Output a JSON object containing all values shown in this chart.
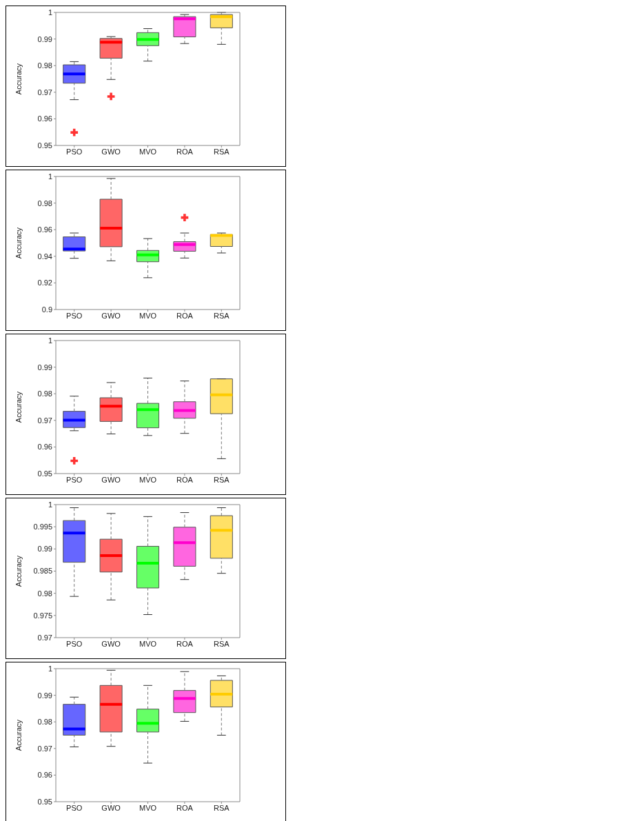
{
  "chart_data": [
    {
      "type": "box",
      "ylabel": "Accuracy",
      "categories": [
        "PSO",
        "GWO",
        "MVO",
        "ROA",
        "RSA"
      ],
      "colors": [
        "#0000ff",
        "#ff0000",
        "#00ff00",
        "#ff00cc",
        "#ffcc00"
      ],
      "ylim": [
        0.95,
        1
      ],
      "yticks": [
        0.95,
        0.96,
        0.97,
        0.98,
        0.99,
        1
      ],
      "boxes": [
        {
          "low": 0.9672,
          "q1": 0.9734,
          "median": 0.9769,
          "q3": 0.9803,
          "high": 0.9815,
          "outliers": [
            0.9549
          ]
        },
        {
          "low": 0.9748,
          "q1": 0.9828,
          "median": 0.9888,
          "q3": 0.9902,
          "high": 0.9909,
          "outliers": [
            0.9684
          ]
        },
        {
          "low": 0.9817,
          "q1": 0.9875,
          "median": 0.9898,
          "q3": 0.9924,
          "high": 0.9939
        },
        {
          "low": 0.9883,
          "q1": 0.9908,
          "median": 0.9976,
          "q3": 0.9984,
          "high": 0.9992
        },
        {
          "low": 0.988,
          "q1": 0.9942,
          "median": 0.9984,
          "q3": 0.9992,
          "high": 1
        }
      ]
    },
    {
      "type": "box",
      "ylabel": "Accuracy",
      "categories": [
        "PSO",
        "GWO",
        "MVO",
        "ROA",
        "RSA"
      ],
      "colors": [
        "#0000ff",
        "#ff0000",
        "#00ff00",
        "#ff00cc",
        "#ffcc00"
      ],
      "ylim": [
        0.9,
        1
      ],
      "yticks": [
        0.9,
        0.92,
        0.94,
        0.96,
        0.98,
        1
      ],
      "boxes": [
        {
          "low": 0.9385,
          "q1": 0.944,
          "median": 0.9455,
          "q3": 0.9546,
          "high": 0.9575
        },
        {
          "low": 0.9366,
          "q1": 0.9472,
          "median": 0.9611,
          "q3": 0.9829,
          "high": 0.9985
        },
        {
          "low": 0.9239,
          "q1": 0.9359,
          "median": 0.941,
          "q3": 0.9444,
          "high": 0.9533
        },
        {
          "low": 0.9387,
          "q1": 0.9438,
          "median": 0.9488,
          "q3": 0.951,
          "high": 0.9575,
          "outliers": [
            0.9691
          ]
        },
        {
          "low": 0.9425,
          "q1": 0.9474,
          "median": 0.9557,
          "q3": 0.9563,
          "high": 0.9575
        }
      ]
    },
    {
      "type": "box",
      "ylabel": "Accuracy",
      "categories": [
        "PSO",
        "GWO",
        "MVO",
        "ROA",
        "RSA"
      ],
      "colors": [
        "#0000ff",
        "#ff0000",
        "#00ff00",
        "#ff00cc",
        "#ffcc00"
      ],
      "ylim": [
        0.95,
        1
      ],
      "yticks": [
        0.95,
        0.96,
        0.97,
        0.98,
        0.99,
        1
      ],
      "boxes": [
        {
          "low": 0.9661,
          "q1": 0.9673,
          "median": 0.9701,
          "q3": 0.9734,
          "high": 0.9791,
          "outliers": [
            0.9548
          ]
        },
        {
          "low": 0.9649,
          "q1": 0.9696,
          "median": 0.9753,
          "q3": 0.9785,
          "high": 0.9842
        },
        {
          "low": 0.9643,
          "q1": 0.9672,
          "median": 0.974,
          "q3": 0.9764,
          "high": 0.9859
        },
        {
          "low": 0.9651,
          "q1": 0.9708,
          "median": 0.9737,
          "q3": 0.977,
          "high": 0.9848
        },
        {
          "low": 0.9556,
          "q1": 0.9725,
          "median": 0.9796,
          "q3": 0.9856,
          "high": 0.9856
        }
      ]
    },
    {
      "type": "box",
      "ylabel": "Accuracy",
      "categories": [
        "PSO",
        "GWO",
        "MVO",
        "ROA",
        "RSA"
      ],
      "colors": [
        "#0000ff",
        "#ff0000",
        "#00ff00",
        "#ff00cc",
        "#ffcc00"
      ],
      "ylim": [
        0.97,
        1
      ],
      "yticks": [
        0.97,
        0.975,
        0.98,
        0.985,
        0.99,
        0.995,
        1
      ],
      "boxes": [
        {
          "low": 0.9793,
          "q1": 0.987,
          "median": 0.9936,
          "q3": 0.9964,
          "high": 0.9993
        },
        {
          "low": 0.9785,
          "q1": 0.9848,
          "median": 0.9885,
          "q3": 0.9922,
          "high": 0.998
        },
        {
          "low": 0.9752,
          "q1": 0.9812,
          "median": 0.9868,
          "q3": 0.9906,
          "high": 0.9973
        },
        {
          "low": 0.9831,
          "q1": 0.9861,
          "median": 0.9914,
          "q3": 0.9949,
          "high": 0.9982
        },
        {
          "low": 0.9845,
          "q1": 0.9879,
          "median": 0.9942,
          "q3": 0.9975,
          "high": 0.9993
        }
      ]
    },
    {
      "type": "box",
      "ylabel": "Accuracy",
      "categories": [
        "PSO",
        "GWO",
        "MVO",
        "ROA",
        "RSA"
      ],
      "colors": [
        "#0000ff",
        "#ff0000",
        "#00ff00",
        "#ff00cc",
        "#ffcc00"
      ],
      "ylim": [
        0.95,
        1
      ],
      "yticks": [
        0.95,
        0.96,
        0.97,
        0.98,
        0.99,
        1
      ],
      "boxes": [
        {
          "low": 0.9706,
          "q1": 0.975,
          "median": 0.9773,
          "q3": 0.9866,
          "high": 0.9893
        },
        {
          "low": 0.9708,
          "q1": 0.9762,
          "median": 0.9866,
          "q3": 0.9937,
          "high": 0.9994
        },
        {
          "low": 0.9645,
          "q1": 0.9762,
          "median": 0.9795,
          "q3": 0.9848,
          "high": 0.9937
        },
        {
          "low": 0.9802,
          "q1": 0.9835,
          "median": 0.9888,
          "q3": 0.9918,
          "high": 0.9989
        },
        {
          "low": 0.975,
          "q1": 0.9856,
          "median": 0.9904,
          "q3": 0.9956,
          "high": 0.9973
        }
      ]
    }
  ]
}
